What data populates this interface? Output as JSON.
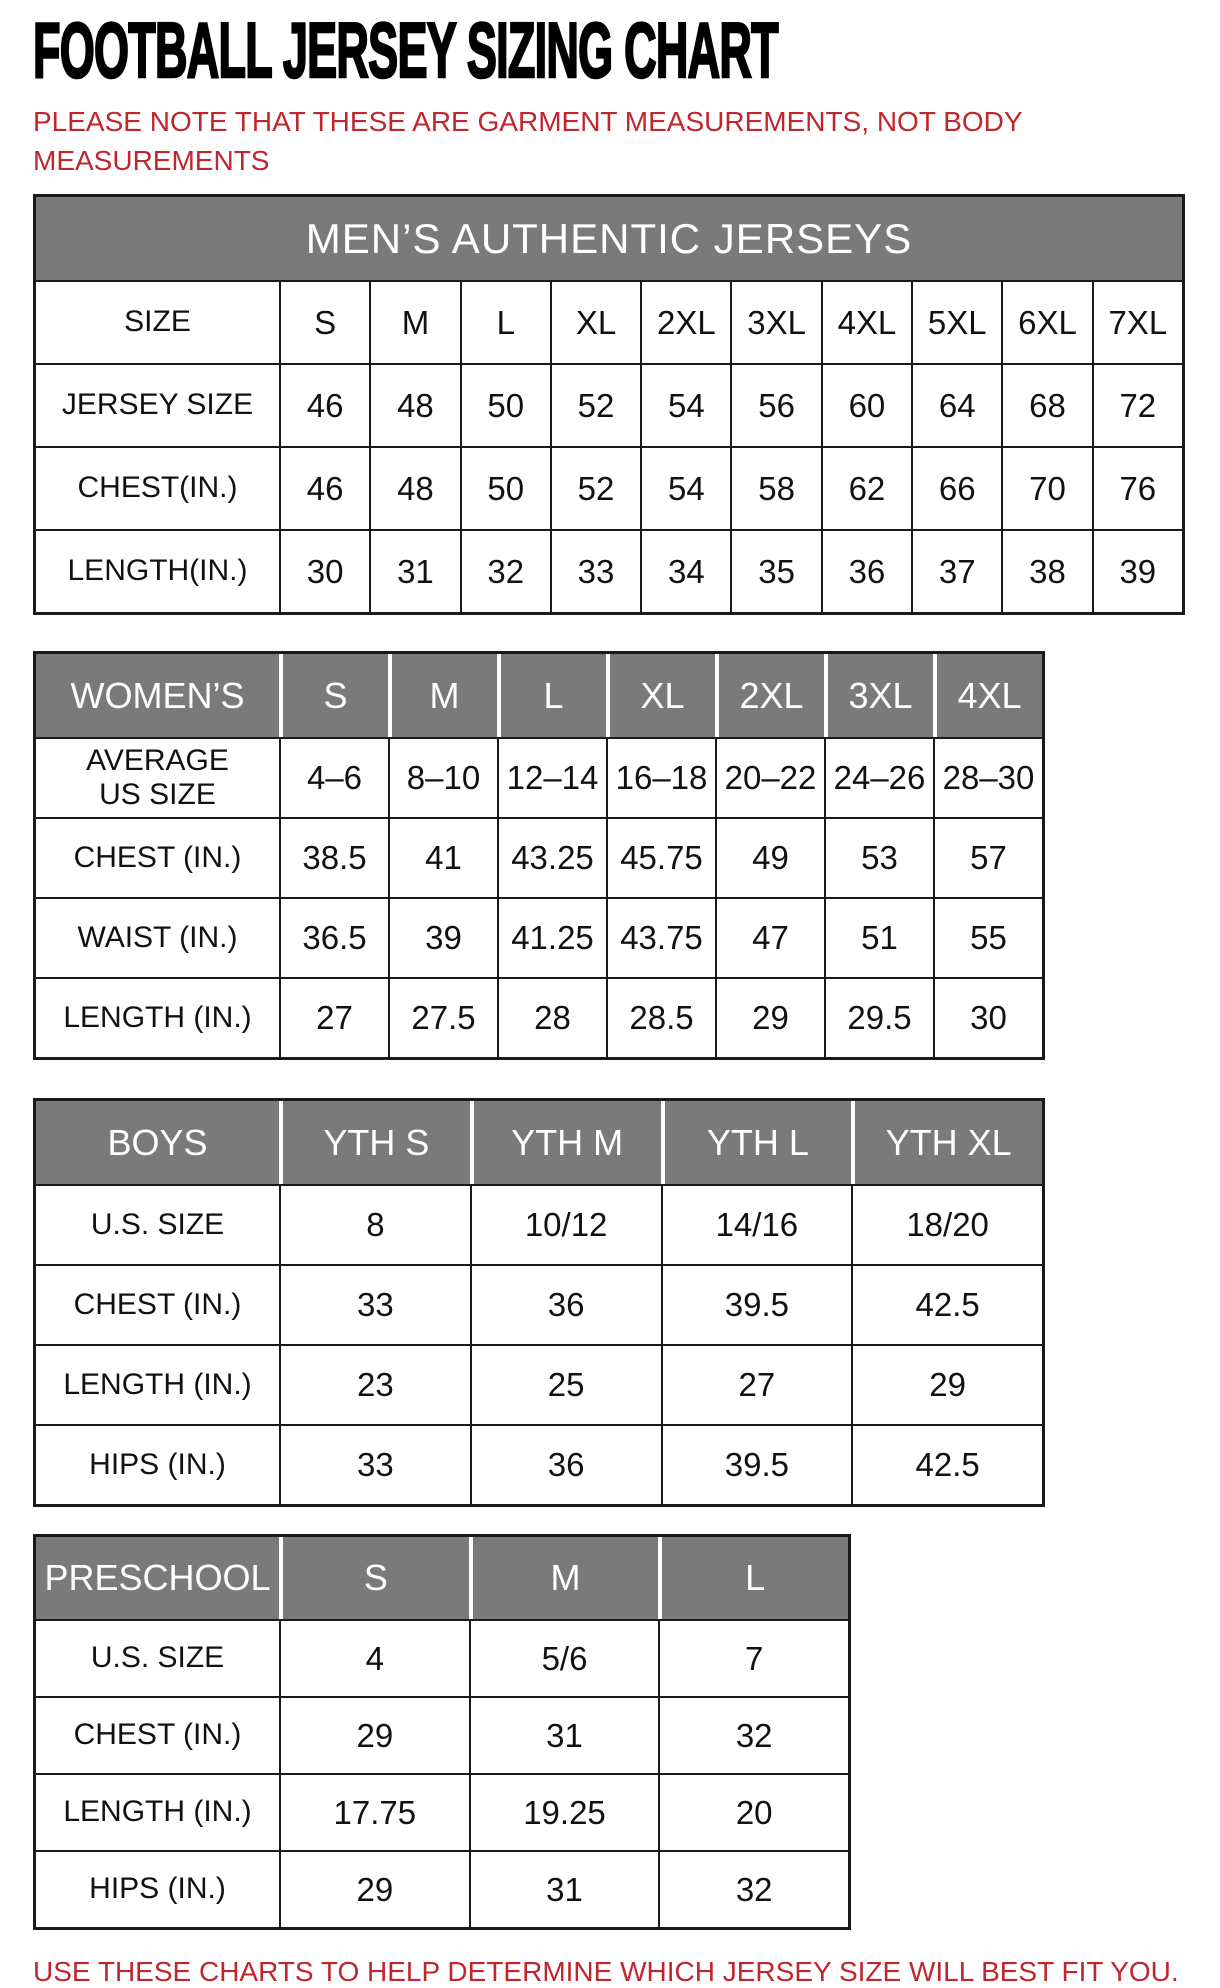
{
  "page": {
    "title": "FOOTBALL JERSEY SIZING CHART",
    "note_line1": "PLEASE NOTE THAT THESE ARE GARMENT MEASUREMENTS, NOT BODY",
    "note_line2": "MEASUREMENTS",
    "footer": "USE THESE CHARTS TO HELP DETERMINE WHICH JERSEY SIZE WILL BEST FIT YOU."
  },
  "colors": {
    "accent_red": "#c0262d",
    "header_gray": "#7a7a7a",
    "border_black": "#1a1a1a"
  },
  "tables": {
    "mens": {
      "banner": "MEN’S AUTHENTIC JERSEYS",
      "rows": [
        {
          "label": "SIZE",
          "values": [
            "S",
            "M",
            "L",
            "XL",
            "2XL",
            "3XL",
            "4XL",
            "5XL",
            "6XL",
            "7XL"
          ]
        },
        {
          "label": "JERSEY SIZE",
          "values": [
            "46",
            "48",
            "50",
            "52",
            "54",
            "56",
            "60",
            "64",
            "68",
            "72"
          ]
        },
        {
          "label": "CHEST(IN.)",
          "values": [
            "46",
            "48",
            "50",
            "52",
            "54",
            "58",
            "62",
            "66",
            "70",
            "76"
          ]
        },
        {
          "label": "LENGTH(IN.)",
          "values": [
            "30",
            "31",
            "32",
            "33",
            "34",
            "35",
            "36",
            "37",
            "38",
            "39"
          ]
        }
      ]
    },
    "womens": {
      "header": [
        "WOMEN’S",
        "S",
        "M",
        "L",
        "XL",
        "2XL",
        "3XL",
        "4XL"
      ],
      "rows": [
        {
          "label": "AVERAGE\nUS SIZE",
          "values": [
            "4–6",
            "8–10",
            "12–14",
            "16–18",
            "20–22",
            "24–26",
            "28–30"
          ]
        },
        {
          "label": "CHEST (IN.)",
          "values": [
            "38.5",
            "41",
            "43.25",
            "45.75",
            "49",
            "53",
            "57"
          ]
        },
        {
          "label": "WAIST (IN.)",
          "values": [
            "36.5",
            "39",
            "41.25",
            "43.75",
            "47",
            "51",
            "55"
          ]
        },
        {
          "label": "LENGTH (IN.)",
          "values": [
            "27",
            "27.5",
            "28",
            "28.5",
            "29",
            "29.5",
            "30"
          ]
        }
      ]
    },
    "boys": {
      "header": [
        "BOYS",
        "YTH S",
        "YTH M",
        "YTH L",
        "YTH XL"
      ],
      "rows": [
        {
          "label": "U.S. SIZE",
          "values": [
            "8",
            "10/12",
            "14/16",
            "18/20"
          ]
        },
        {
          "label": "CHEST (IN.)",
          "values": [
            "33",
            "36",
            "39.5",
            "42.5"
          ]
        },
        {
          "label": "LENGTH (IN.)",
          "values": [
            "23",
            "25",
            "27",
            "29"
          ]
        },
        {
          "label": "HIPS (IN.)",
          "values": [
            "33",
            "36",
            "39.5",
            "42.5"
          ]
        }
      ]
    },
    "preschool": {
      "header": [
        "PRESCHOOL",
        "S",
        "M",
        "L"
      ],
      "rows": [
        {
          "label": "U.S. SIZE",
          "values": [
            "4",
            "5/6",
            "7"
          ]
        },
        {
          "label": "CHEST (IN.)",
          "values": [
            "29",
            "31",
            "32"
          ]
        },
        {
          "label": "LENGTH (IN.)",
          "values": [
            "17.75",
            "19.25",
            "20"
          ]
        },
        {
          "label": "HIPS (IN.)",
          "values": [
            "29",
            "31",
            "32"
          ]
        }
      ]
    }
  }
}
